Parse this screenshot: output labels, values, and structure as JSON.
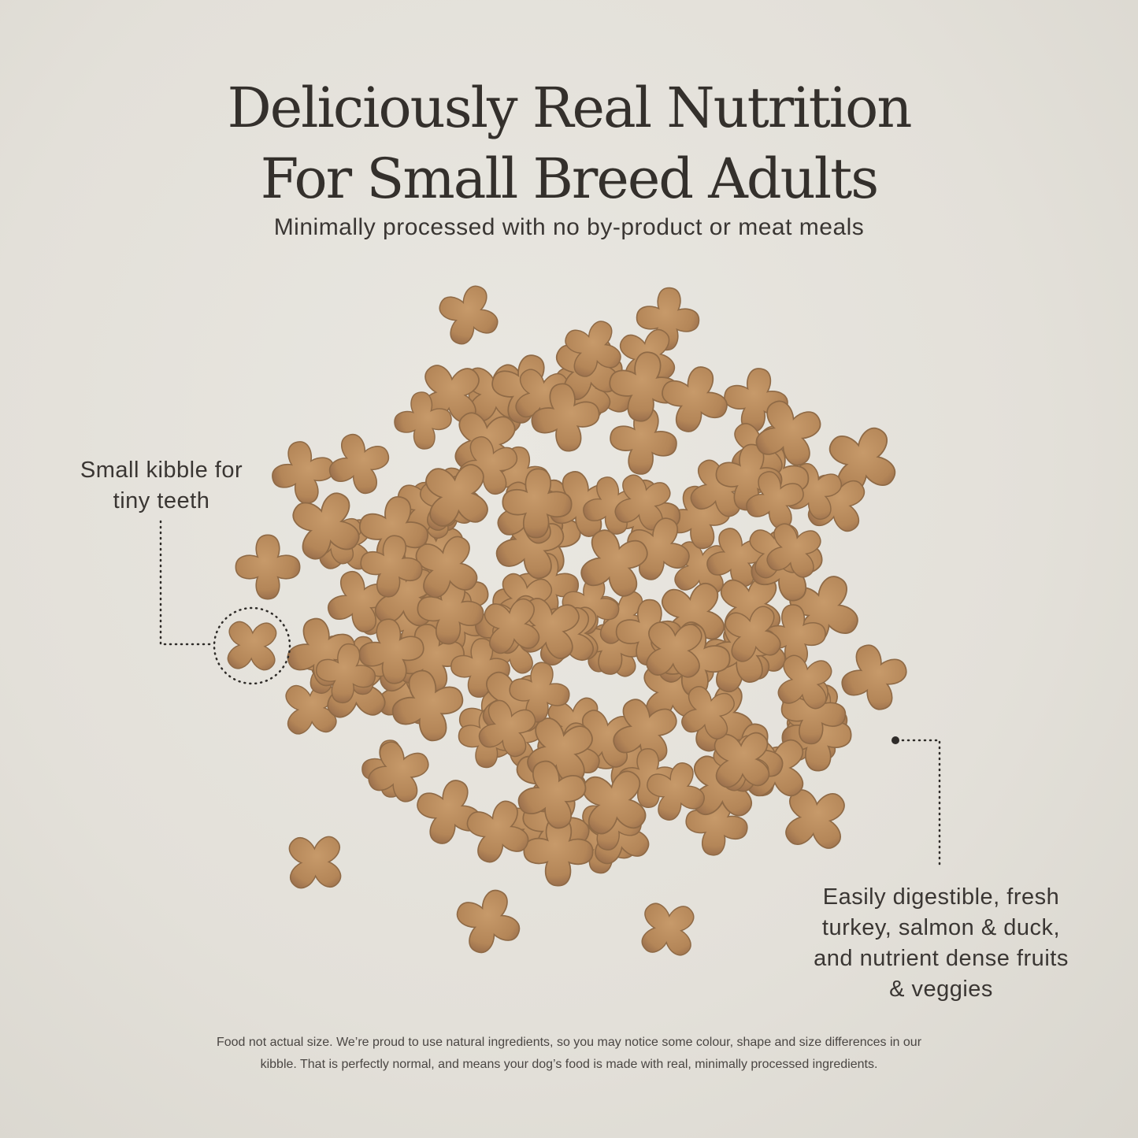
{
  "headline": {
    "line1": "Deliciously Real Nutrition",
    "line2": "For Small Breed Adults"
  },
  "subtitle": "Minimally processed with no by-product or meat meals",
  "callouts": {
    "left": {
      "line1": "Small kibble for",
      "line2": "tiny teeth"
    },
    "right": {
      "line1": "Easily digestible, fresh",
      "line2": "turkey, salmon & duck,",
      "line3": "and nutrient dense fruits",
      "line4": "& veggies"
    }
  },
  "disclaimer": {
    "line1": "Food not actual size. We’re proud to use natural ingredients, so you may notice some colour, shape and size differences in our",
    "line2": "kibble. That is perfectly normal, and means your dog’s food is made with real, minimally processed ingredients."
  },
  "colors": {
    "background": "#e4e1da",
    "text": "#34302c",
    "kibble": "#b48658",
    "kibble_dark": "#8f6a46"
  }
}
